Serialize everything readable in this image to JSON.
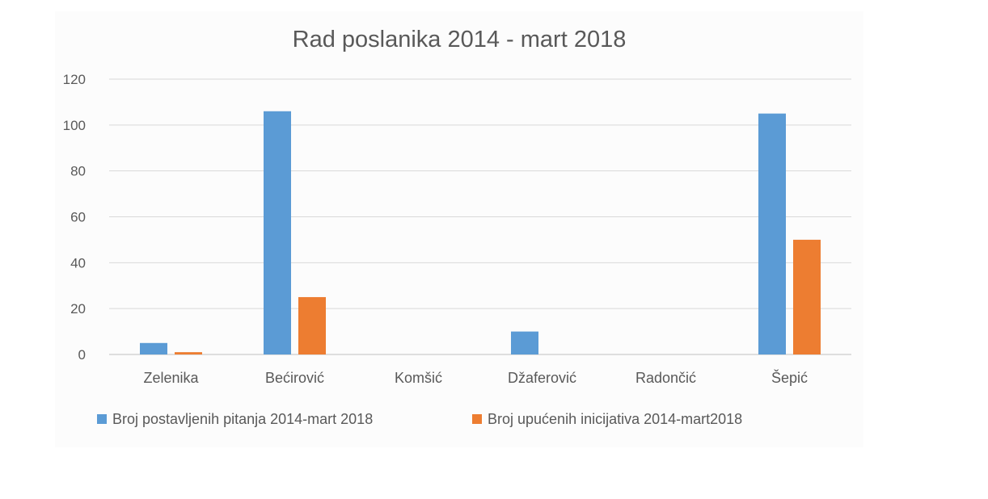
{
  "chart_data": {
    "type": "bar",
    "title": "Rad poslanika 2014 - mart 2018",
    "categories": [
      "Zelenika",
      "Bećirović",
      "Komšić",
      "Džaferović",
      "Radončić",
      "Šepić"
    ],
    "series": [
      {
        "name": "Broj postavljenih pitanja 2014-mart 2018",
        "color": "#5b9bd5",
        "values": [
          5,
          106,
          0,
          10,
          0,
          105
        ]
      },
      {
        "name": "Broj upućenih inicijativa 2014-mart2018",
        "color": "#ed7d31",
        "values": [
          1,
          25,
          0,
          0,
          0,
          50
        ]
      }
    ],
    "ylim": [
      0,
      120
    ],
    "yticks": [
      0,
      20,
      40,
      60,
      80,
      100,
      120
    ],
    "grid": true,
    "legend_position": "bottom-left"
  }
}
